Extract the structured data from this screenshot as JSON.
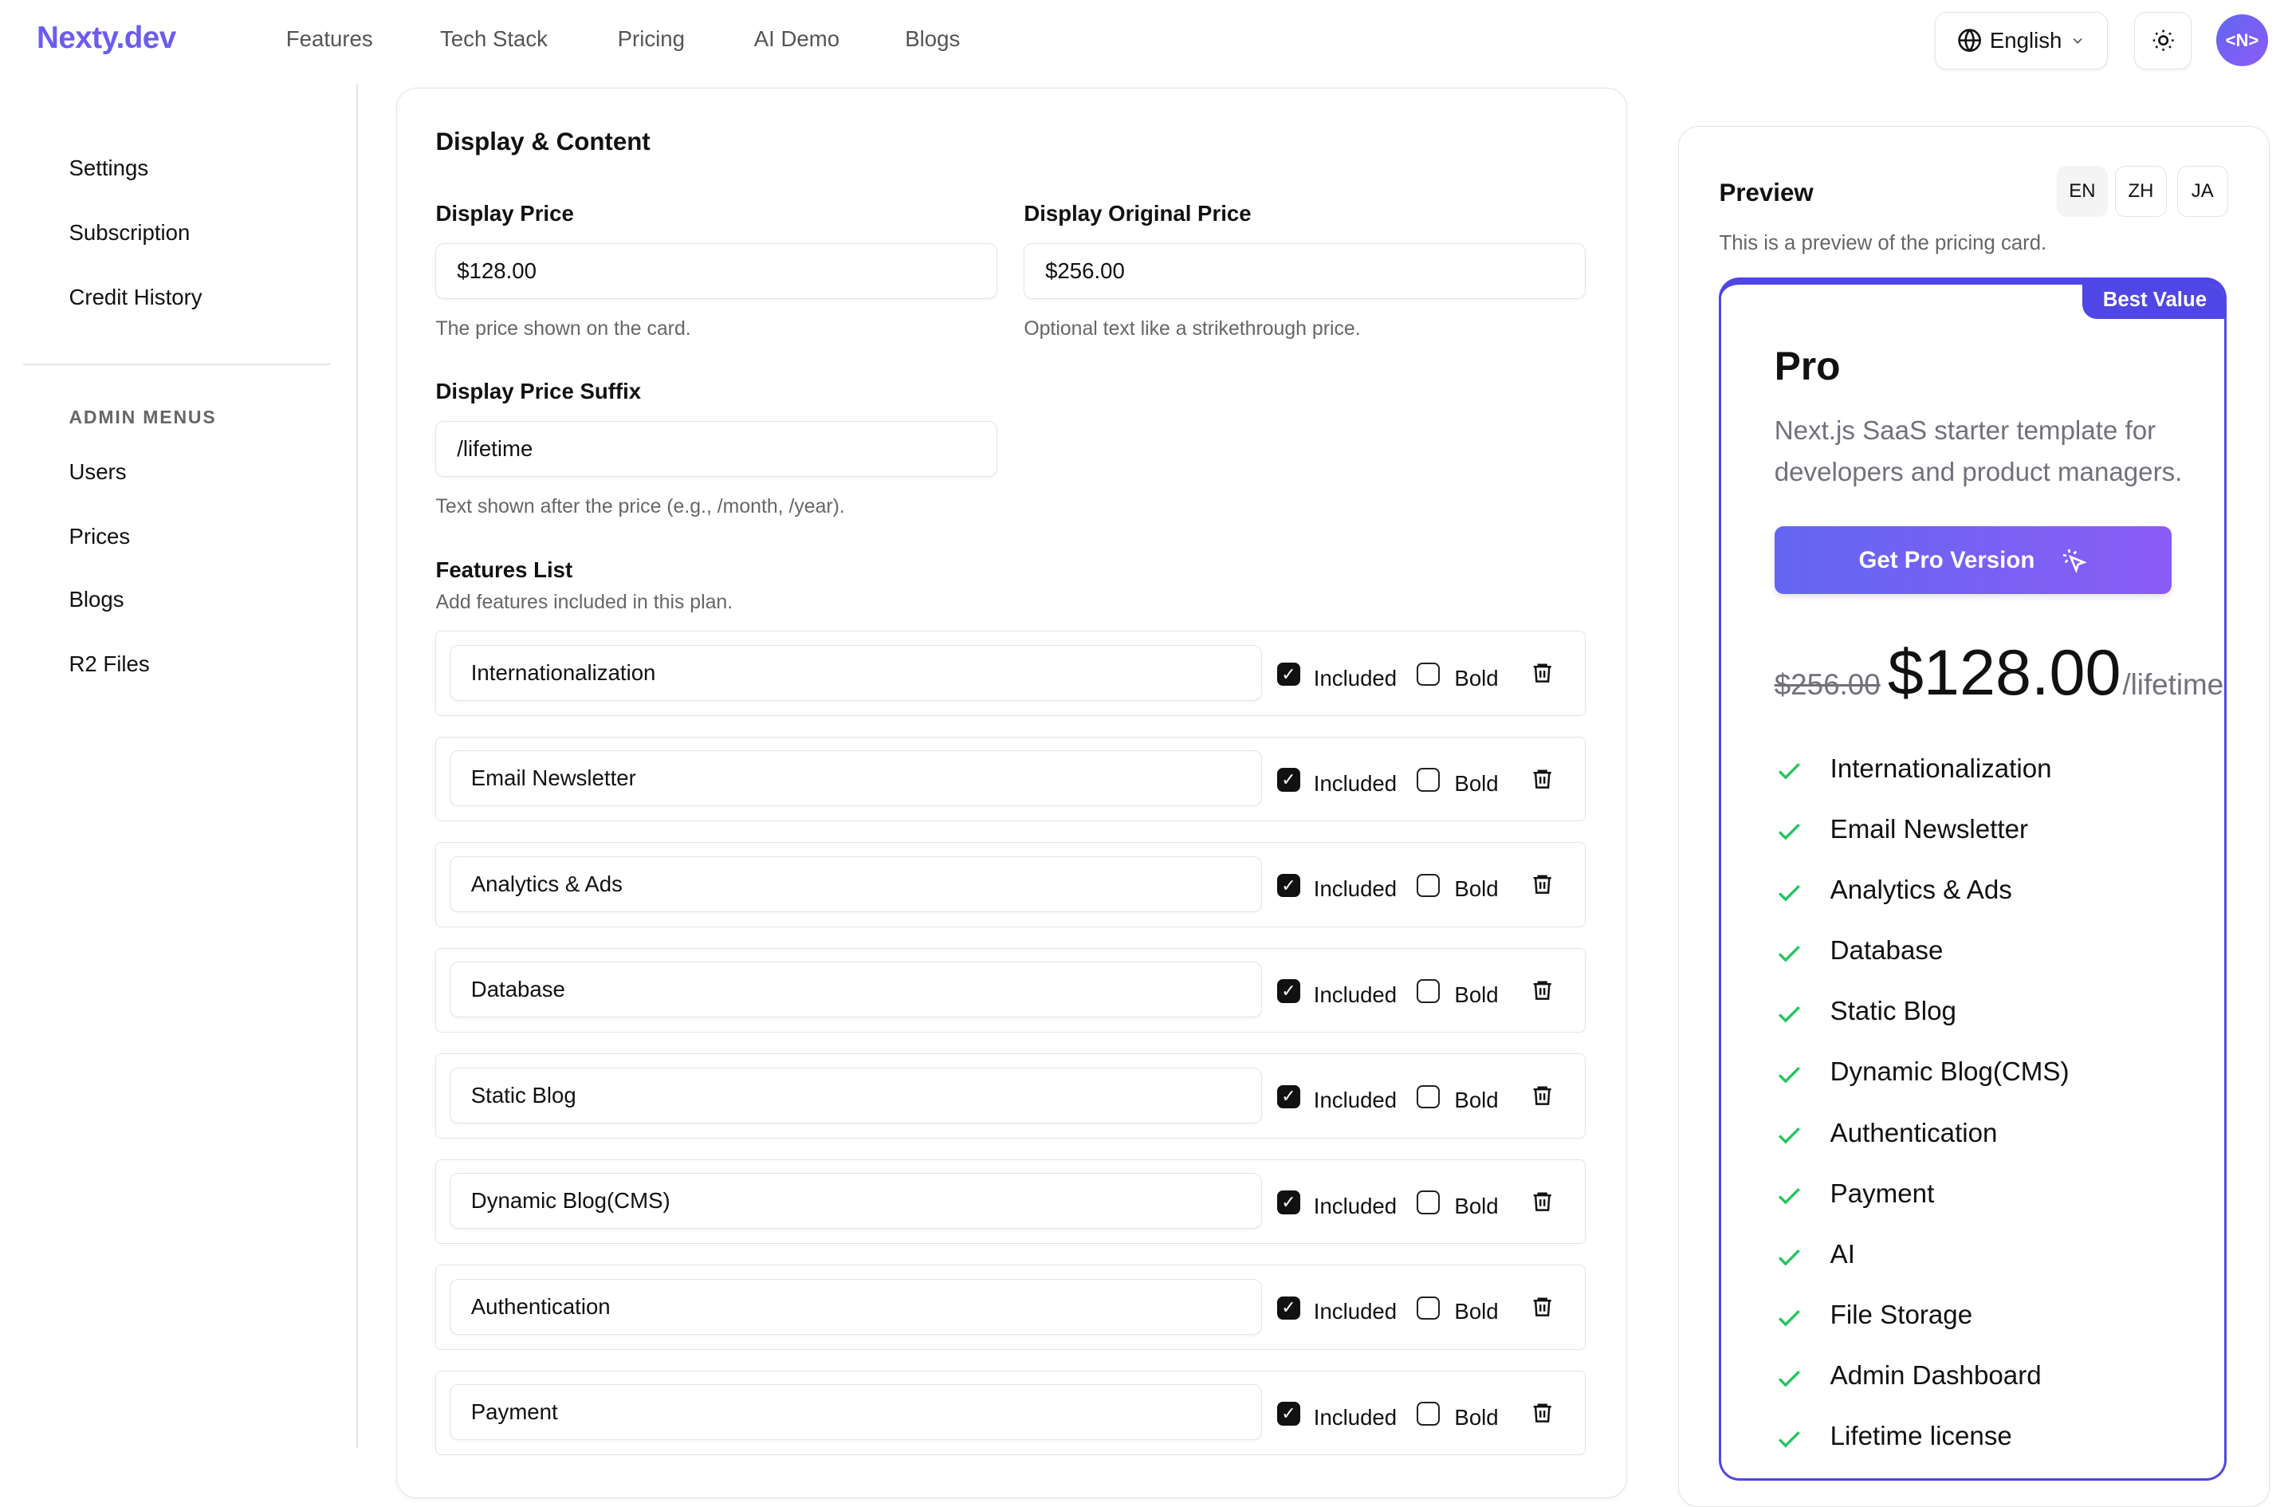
{
  "header": {
    "logo": "Nexty.dev",
    "nav": [
      "Features",
      "Tech Stack",
      "Pricing",
      "AI Demo",
      "Blogs"
    ],
    "language": "English",
    "avatar_text": "<N>"
  },
  "sidebar": {
    "items": [
      "Settings",
      "Subscription",
      "Credit History"
    ],
    "admin_heading": "ADMIN MENUS",
    "admin_items": [
      "Users",
      "Prices",
      "Blogs",
      "R2 Files"
    ]
  },
  "form": {
    "title": "Display & Content",
    "display_price": {
      "label": "Display Price",
      "value": "$128.00",
      "help": "The price shown on the card."
    },
    "original_price": {
      "label": "Display Original Price",
      "value": "$256.00",
      "help": "Optional text like a strikethrough price."
    },
    "suffix": {
      "label": "Display Price Suffix",
      "value": "/lifetime",
      "help": "Text shown after the price (e.g., /month, /year)."
    },
    "features_label": "Features List",
    "features_help": "Add features included in this plan.",
    "included_label": "Included",
    "bold_label": "Bold",
    "features": [
      {
        "name": "Internationalization",
        "included": true,
        "bold": false
      },
      {
        "name": "Email Newsletter",
        "included": true,
        "bold": false
      },
      {
        "name": "Analytics & Ads",
        "included": true,
        "bold": false
      },
      {
        "name": "Database",
        "included": true,
        "bold": false
      },
      {
        "name": "Static Blog",
        "included": true,
        "bold": false
      },
      {
        "name": "Dynamic Blog(CMS)",
        "included": true,
        "bold": false
      },
      {
        "name": "Authentication",
        "included": true,
        "bold": false
      },
      {
        "name": "Payment",
        "included": true,
        "bold": false
      }
    ]
  },
  "preview": {
    "title": "Preview",
    "langs": [
      "EN",
      "ZH",
      "JA"
    ],
    "active_lang": "EN",
    "subtitle": "This is a preview of the pricing card.",
    "card": {
      "badge": "Best Value",
      "plan": "Pro",
      "description": "Next.js SaaS starter template for developers and product managers.",
      "cta": "Get Pro Version",
      "original_price": "$256.00",
      "price": "$128.00",
      "suffix": "/lifetime",
      "features": [
        "Internationalization",
        "Email Newsletter",
        "Analytics & Ads",
        "Database",
        "Static Blog",
        "Dynamic Blog(CMS)",
        "Authentication",
        "Payment",
        "AI",
        "File Storage",
        "Admin Dashboard",
        "Lifetime license"
      ]
    },
    "accent": "#4f46e5",
    "check_color": "#22c55e"
  }
}
